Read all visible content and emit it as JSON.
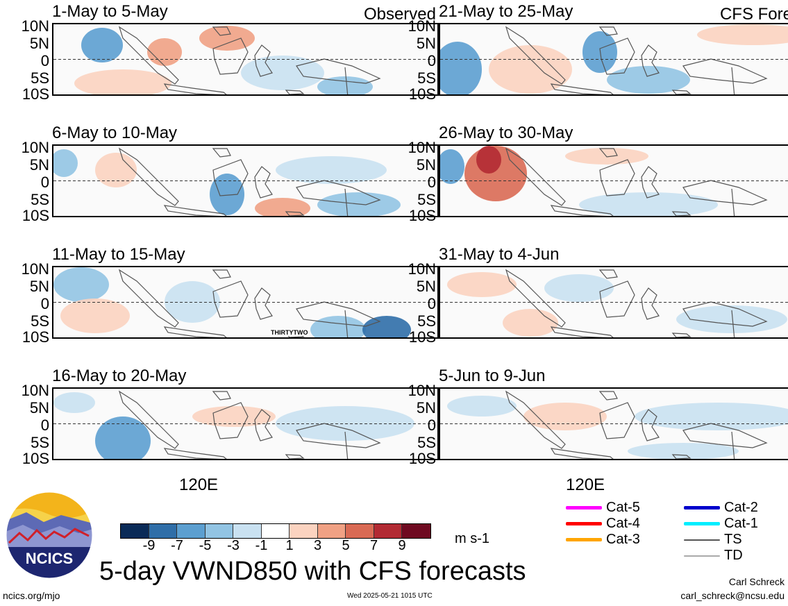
{
  "panels": [
    {
      "title": "1-May to 5-May",
      "corner": "Observed"
    },
    {
      "title": "21-May to 25-May",
      "corner": "CFS Forecast"
    },
    {
      "title": "6-May to 10-May",
      "corner": ""
    },
    {
      "title": "26-May to 30-May",
      "corner": ""
    },
    {
      "title": "11-May to 15-May",
      "corner": "",
      "annotation": "THIRTYTWO"
    },
    {
      "title": "31-May to 4-Jun",
      "corner": ""
    },
    {
      "title": "16-May to 20-May",
      "corner": ""
    },
    {
      "title": "5-Jun to 9-Jun",
      "corner": ""
    }
  ],
  "lat_labels": [
    "10N",
    "5N",
    "0",
    "5S",
    "10S"
  ],
  "lon_label": "120E",
  "colorbar": {
    "colors": [
      "#0a2a57",
      "#2f6ea8",
      "#5c9fd0",
      "#92c4e3",
      "#c9e1f1",
      "#ffffff",
      "#fbd3c0",
      "#f0a184",
      "#d96a54",
      "#b22a33",
      "#6f0a21"
    ],
    "ticks": [
      "-9",
      "-7",
      "-5",
      "-3",
      "-1",
      "1",
      "3",
      "5",
      "7",
      "9"
    ],
    "units": "m s-1"
  },
  "legend": [
    {
      "label": "Cat-5",
      "color": "#ff00ff"
    },
    {
      "label": "Cat-4",
      "color": "#ff0000"
    },
    {
      "label": "Cat-3",
      "color": "#ffa500"
    },
    {
      "label": "Cat-2",
      "color": "#0000cc"
    },
    {
      "label": "Cat-1",
      "color": "#00eeff"
    },
    {
      "label": "TS",
      "color": "#555555"
    },
    {
      "label": "TD",
      "color": "#aaaaaa"
    }
  ],
  "main_title": "5-day VWND850 with CFS forecasts",
  "footer": {
    "left": "ncics.org/mjo",
    "center": "Wed 2025-05-21 1015 UTC",
    "author": "Carl Schreck",
    "email": "carl_schreck@ncsu.edu"
  },
  "logo_text": "NCICS"
}
